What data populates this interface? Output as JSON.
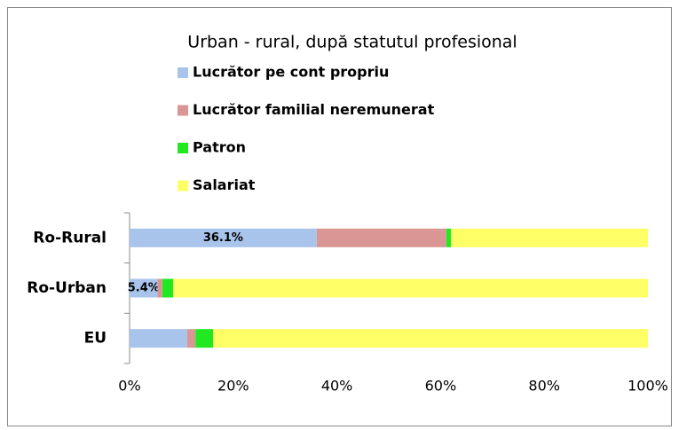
{
  "chart_data": {
    "type": "stacked-barh",
    "title": "Urban - rural, după statutul profesional",
    "categories": [
      "Ro-Rural",
      "Ro-Urban",
      "EU"
    ],
    "series": [
      {
        "name": "Lucrător pe cont propriu",
        "color": "#a9c4eb",
        "values": [
          36.1,
          5.4,
          11.1
        ],
        "value_labels": [
          "36.1%",
          "5.4%",
          null
        ]
      },
      {
        "name": "Lucrător familial neremunerat",
        "color": "#d99694",
        "values": [
          25.0,
          0.9,
          1.6
        ]
      },
      {
        "name": "Patron",
        "color": "#22e822",
        "values": [
          0.9,
          2.1,
          3.4
        ]
      },
      {
        "name": "Salariat",
        "color": "#ffff66",
        "values": [
          38.0,
          91.6,
          83.9
        ]
      }
    ],
    "xlim": [
      0,
      100
    ],
    "xticks": [
      {
        "value": 0,
        "label": "0%"
      },
      {
        "value": 20,
        "label": "20%"
      },
      {
        "value": 40,
        "label": "40%"
      },
      {
        "value": 60,
        "label": "60%"
      },
      {
        "value": 80,
        "label": "80%"
      },
      {
        "value": 100,
        "label": "100%"
      }
    ]
  }
}
